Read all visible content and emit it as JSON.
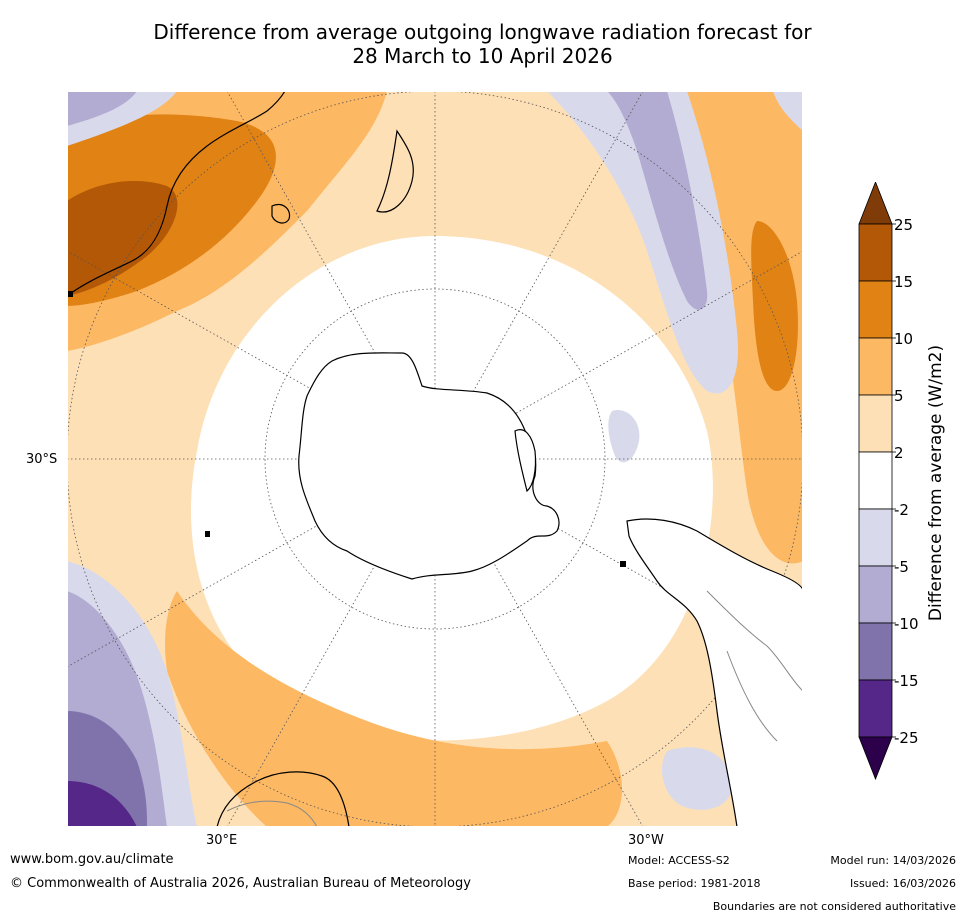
{
  "title": {
    "line1": "Difference from average outgoing longwave radiation forecast for",
    "line2": "28 March to 10 April 2026"
  },
  "map": {
    "projection": "south polar stereographic",
    "lat_label": "30°S",
    "lon_labels": [
      "30°E",
      "30°W"
    ],
    "colors": {
      "ocean_background": "#ffffff",
      "land_outline": "#000000",
      "boundary_outline": "#888888",
      "graticule": "#555555"
    }
  },
  "colorbar": {
    "title": "Difference from average (W/m2)",
    "ticks": [
      "25",
      "15",
      "10",
      "5",
      "2",
      "-2",
      "-5",
      "-10",
      "-15",
      "-25"
    ],
    "bins": [
      {
        "range": "above 25",
        "color": "#7f3b08"
      },
      {
        "range": "15 to 25",
        "color": "#b35806"
      },
      {
        "range": "10 to 15",
        "color": "#e08214"
      },
      {
        "range": "5 to 10",
        "color": "#fdb863"
      },
      {
        "range": "2 to 5",
        "color": "#fee0b6"
      },
      {
        "range": "-2 to 2",
        "color": "#ffffff"
      },
      {
        "range": "-5 to -2",
        "color": "#d8daeb"
      },
      {
        "range": "-10 to -5",
        "color": "#b2abd2"
      },
      {
        "range": "-15 to -10",
        "color": "#8073ac"
      },
      {
        "range": "-25 to -15",
        "color": "#542788"
      },
      {
        "range": "below -25",
        "color": "#2d004b"
      }
    ]
  },
  "footer": {
    "website": "www.bom.gov.au/climate",
    "copyright": "© Commonwealth of Australia 2026, Australian Bureau of Meteorology",
    "model": "Model: ACCESS-S2",
    "base_period": "Base period: 1981-2018",
    "model_run": "Model run: 14/03/2026",
    "issued": "Issued: 16/03/2026",
    "disclaimer": "Boundaries are not considered authoritative"
  }
}
